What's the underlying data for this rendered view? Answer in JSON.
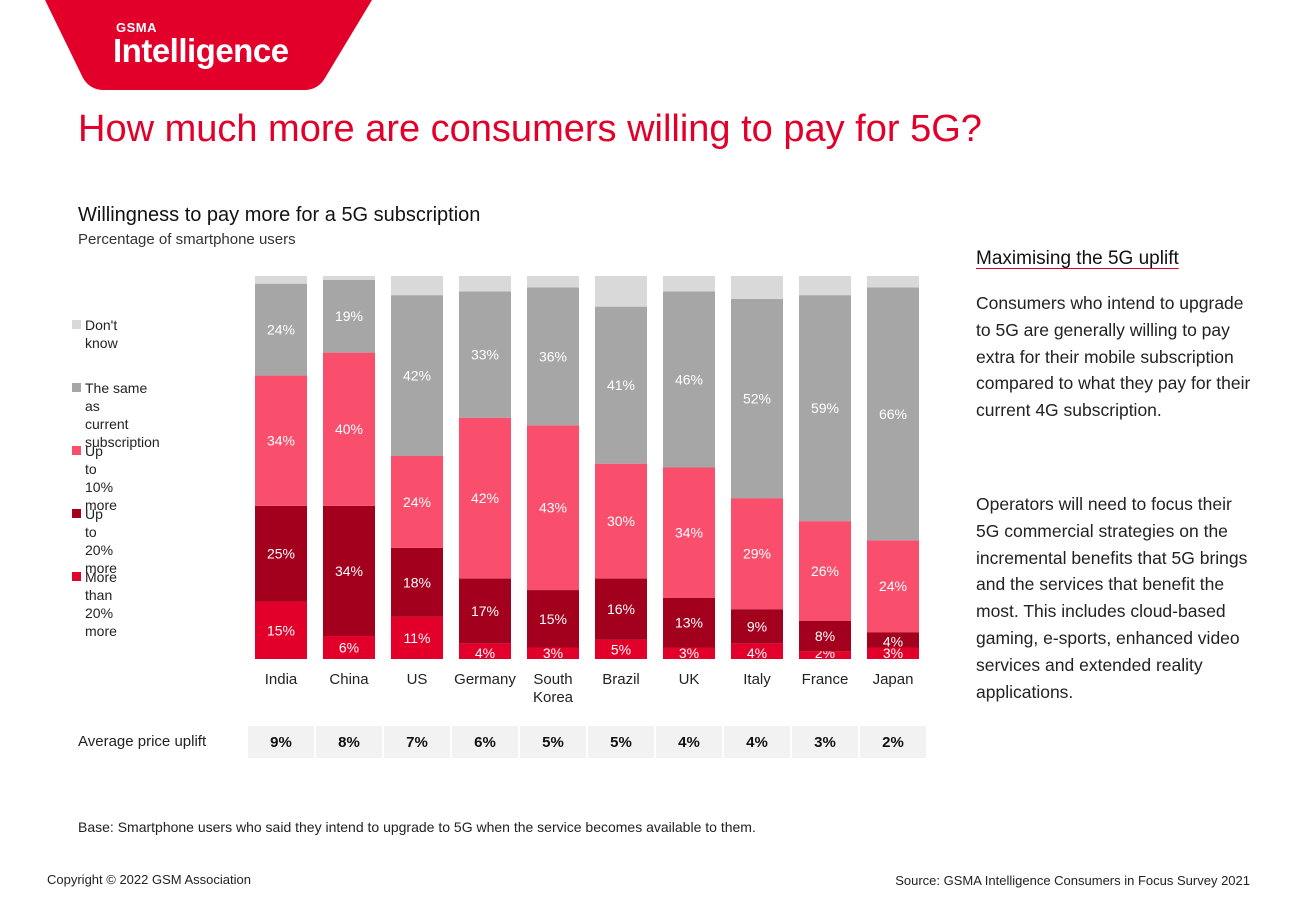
{
  "brand": {
    "logo_small": "GSMA",
    "logo_big": "Intelligence",
    "color": "#e2002a"
  },
  "page_title": "How much more are consumers willing to pay for 5G?",
  "sidebar": {
    "heading": "Maximising the 5G uplift",
    "paragraphs": [
      "Consumers who intend to upgrade to 5G are generally willing to pay extra for their mobile subscription compared to what they pay for their current 4G subscription.",
      "Operators will need to focus their 5G commercial strategies on the incremental benefits that 5G brings and the services that benefit the most. This includes cloud-based gaming, e-sports, enhanced video services and extended reality applications."
    ]
  },
  "footer": {
    "base_note": "Base: Smartphone users who said they intend to upgrade to 5G when the service becomes available to them.",
    "copyright": "Copyright © 2022 GSM Association",
    "source": "Source: GSMA Intelligence Consumers in Focus Survey 2021"
  },
  "chart_data": {
    "type": "bar",
    "stacked": true,
    "title": "Willingness to pay more for a 5G subscription",
    "subtitle": "Percentage of smartphone users",
    "categories": [
      "India",
      "China",
      "US",
      "Germany",
      "South\nKorea",
      "Brazil",
      "UK",
      "Italy",
      "France",
      "Japan"
    ],
    "ylim": [
      0,
      100
    ],
    "series": [
      {
        "name": "More than 20%\nmore",
        "color": "#e2002a",
        "text_color": "#ffffff",
        "values": [
          15,
          6,
          11,
          4,
          3,
          5,
          3,
          4,
          2,
          3
        ],
        "labels": [
          "15%",
          "6%",
          "11%",
          "4%",
          "3%",
          "5%",
          "3%",
          "4%",
          "2%",
          "3%"
        ]
      },
      {
        "name": "Up to 20% more",
        "color": "#a3001e",
        "text_color": "#ffffff",
        "values": [
          25,
          34,
          18,
          17,
          15,
          16,
          13,
          9,
          8,
          4
        ],
        "labels": [
          "25%",
          "34%",
          "18%",
          "17%",
          "15%",
          "16%",
          "13%",
          "9%",
          "8%",
          "4%"
        ]
      },
      {
        "name": "Up to 10% more",
        "color": "#f94f6d",
        "text_color": "#ffffff",
        "values": [
          34,
          40,
          24,
          42,
          43,
          30,
          34,
          29,
          26,
          24
        ],
        "labels": [
          "34%",
          "40%",
          "24%",
          "42%",
          "43%",
          "30%",
          "34%",
          "29%",
          "26%",
          "24%"
        ]
      },
      {
        "name": "The same as\ncurrent subscription",
        "color": "#a6a6a6",
        "text_color": "#ffffff",
        "values": [
          24,
          19,
          42,
          33,
          36,
          41,
          46,
          52,
          59,
          66
        ],
        "labels": [
          "24%",
          "19%",
          "42%",
          "33%",
          "36%",
          "41%",
          "46%",
          "52%",
          "59%",
          "66%"
        ]
      },
      {
        "name": "Don't know",
        "color": "#d9d9d9",
        "text_color": "#ffffff",
        "values": [
          2,
          1,
          5,
          4,
          3,
          8,
          4,
          6,
          5,
          3
        ],
        "labels": []
      }
    ],
    "uplift": {
      "label": "Average price uplift",
      "values": [
        "9%",
        "8%",
        "7%",
        "6%",
        "5%",
        "5%",
        "4%",
        "4%",
        "3%",
        "2%"
      ]
    },
    "legend_position": "left",
    "grid": false
  }
}
